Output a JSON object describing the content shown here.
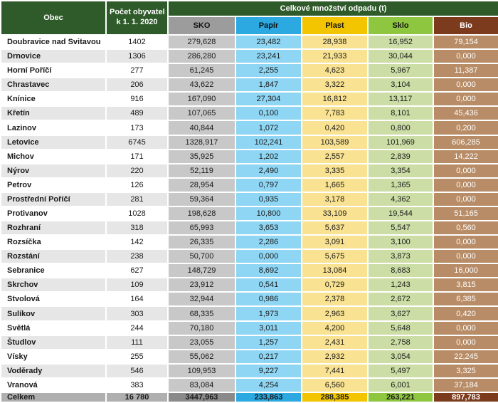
{
  "header": {
    "obec_label": "Obec",
    "population_line1": "Počet obyvatel",
    "population_line2": "k 1. 1. 2020",
    "waste_group_label": "Celkové množství odpadu (t)"
  },
  "colors": {
    "header_green": "#2e5b29",
    "sko": "#9c9c9c",
    "papir": "#2ba9e0",
    "plast": "#f2c500",
    "sklo": "#8fc640",
    "bio": "#7b3b1c",
    "sko_cell": "#c8c8c8",
    "papir_cell": "#8ed6f4",
    "plast_cell": "#f9e291",
    "sklo_cell": "#ccdda5",
    "bio_cell": "#b78c66",
    "alt_row": "#e6e6e6",
    "total_gray": "#afafaf"
  },
  "chart_data": {
    "type": "table",
    "title": "Celkové množství odpadu (t)",
    "columns": [
      "Obec",
      "Počet obyvatel k 1. 1. 2020",
      "SKO",
      "Papír",
      "Plast",
      "Sklo",
      "Bio"
    ],
    "rows": [
      [
        "Doubravice nad Svitavou",
        "1402",
        "279,628",
        "23,482",
        "28,938",
        "16,952",
        "79,154"
      ],
      [
        "Drnovice",
        "1306",
        "286,280",
        "23,241",
        "21,933",
        "30,044",
        "0,000"
      ],
      [
        "Horní Poříčí",
        "277",
        "61,245",
        "2,255",
        "4,623",
        "5,967",
        "11,387"
      ],
      [
        "Chrastavec",
        "206",
        "43,622",
        "1,847",
        "3,322",
        "3,104",
        "0,000"
      ],
      [
        "Knínice",
        "916",
        "167,090",
        "27,304",
        "16,812",
        "13,117",
        "0,000"
      ],
      [
        "Křetín",
        "489",
        "107,065",
        "0,100",
        "7,783",
        "8,101",
        "45,436"
      ],
      [
        "Lazinov",
        "173",
        "40,844",
        "1,072",
        "0,420",
        "0,800",
        "0,200"
      ],
      [
        "Letovice",
        "6745",
        "1328,917",
        "102,241",
        "103,589",
        "101,969",
        "606,285"
      ],
      [
        "Michov",
        "171",
        "35,925",
        "1,202",
        "2,557",
        "2,839",
        "14,222"
      ],
      [
        "Nýrov",
        "220",
        "52,119",
        "2,490",
        "3,335",
        "3,354",
        "0,000"
      ],
      [
        "Petrov",
        "126",
        "28,954",
        "0,797",
        "1,665",
        "1,365",
        "0,000"
      ],
      [
        "Prostřední Poříčí",
        "281",
        "59,364",
        "0,935",
        "3,178",
        "4,362",
        "0,000"
      ],
      [
        "Protivanov",
        "1028",
        "198,628",
        "10,800",
        "33,109",
        "19,544",
        "51,165"
      ],
      [
        "Rozhraní",
        "318",
        "65,993",
        "3,653",
        "5,637",
        "5,547",
        "0,560"
      ],
      [
        "Rozsíčka",
        "142",
        "26,335",
        "2,286",
        "3,091",
        "3,100",
        "0,000"
      ],
      [
        "Rozstání",
        "238",
        "50,700",
        "0,000",
        "5,675",
        "3,873",
        "0,000"
      ],
      [
        "Sebranice",
        "627",
        "148,729",
        "8,692",
        "13,084",
        "8,683",
        "16,000"
      ],
      [
        "Skrchov",
        "109",
        "23,912",
        "0,541",
        "0,729",
        "1,243",
        "3,815"
      ],
      [
        "Stvolová",
        "164",
        "32,944",
        "0,986",
        "2,378",
        "2,672",
        "6,385"
      ],
      [
        "Sulíkov",
        "303",
        "68,335",
        "1,973",
        "2,963",
        "3,627",
        "0,420"
      ],
      [
        "Světlá",
        "244",
        "70,180",
        "3,011",
        "4,200",
        "5,648",
        "0,000"
      ],
      [
        "Študlov",
        "111",
        "23,055",
        "1,257",
        "2,431",
        "2,758",
        "0,000"
      ],
      [
        "Vísky",
        "255",
        "55,062",
        "0,217",
        "2,932",
        "3,054",
        "22,245"
      ],
      [
        "Voděrady",
        "546",
        "109,953",
        "9,227",
        "7,441",
        "5,497",
        "3,325"
      ],
      [
        "Vranová",
        "383",
        "83,084",
        "4,254",
        "6,560",
        "6,001",
        "37,184"
      ]
    ],
    "total_row": [
      "Celkem",
      "16 780",
      "3447,963",
      "233,863",
      "288,385",
      "263,221",
      "897,783"
    ]
  }
}
